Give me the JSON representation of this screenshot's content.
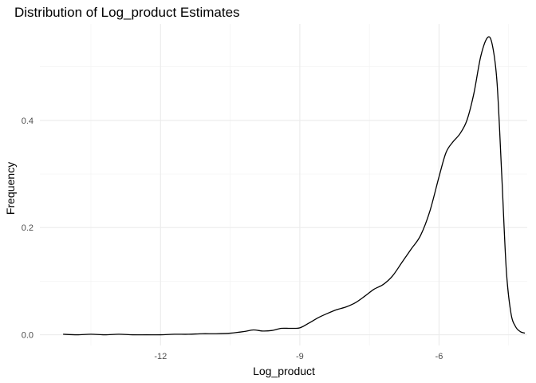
{
  "chart_data": {
    "type": "line",
    "title": "Distribution of Log_product Estimates",
    "xlabel": "Log_product",
    "ylabel": "Frequency",
    "xlim": [
      -14.6,
      -4.1
    ],
    "ylim": [
      -0.02,
      0.58
    ],
    "x_ticks": [
      -12,
      -9,
      -6
    ],
    "x_tick_labels": [
      "-12",
      "-9",
      "-6"
    ],
    "x_minor_ticks": [
      -13.5,
      -10.5,
      -7.5,
      -4.5
    ],
    "y_ticks": [
      0.0,
      0.2,
      0.4
    ],
    "y_tick_labels": [
      "0.0",
      "0.2",
      "0.4"
    ],
    "y_minor_ticks": [
      0.1,
      0.3,
      0.5
    ],
    "grid": true,
    "legend": "none",
    "colors": {
      "line": "#000000",
      "grid_major": "#ebebeb",
      "grid_minor": "#f2f2f2"
    },
    "series": [
      {
        "x": [
          -14.1,
          -13.8,
          -13.5,
          -13.2,
          -12.9,
          -12.6,
          -12.3,
          -12.0,
          -11.7,
          -11.4,
          -11.1,
          -10.8,
          -10.5,
          -10.2,
          -10.0,
          -9.8,
          -9.6,
          -9.4,
          -9.2,
          -9.0,
          -8.8,
          -8.6,
          -8.4,
          -8.2,
          -8.0,
          -7.8,
          -7.6,
          -7.4,
          -7.2,
          -7.0,
          -6.8,
          -6.6,
          -6.4,
          -6.2,
          -6.0,
          -5.85,
          -5.7,
          -5.55,
          -5.4,
          -5.25,
          -5.1,
          -4.95,
          -4.85,
          -4.75,
          -4.65,
          -4.55,
          -4.45,
          -4.35,
          -4.25,
          -4.15
        ],
        "y": [
          0.001,
          0.0,
          0.001,
          0.0,
          0.001,
          0.0,
          0.0,
          0.0,
          0.001,
          0.001,
          0.002,
          0.002,
          0.003,
          0.006,
          0.009,
          0.007,
          0.008,
          0.012,
          0.012,
          0.013,
          0.022,
          0.032,
          0.04,
          0.047,
          0.052,
          0.06,
          0.072,
          0.085,
          0.094,
          0.11,
          0.135,
          0.16,
          0.185,
          0.23,
          0.295,
          0.34,
          0.36,
          0.375,
          0.4,
          0.45,
          0.52,
          0.555,
          0.54,
          0.47,
          0.3,
          0.12,
          0.04,
          0.015,
          0.006,
          0.003
        ]
      }
    ]
  }
}
